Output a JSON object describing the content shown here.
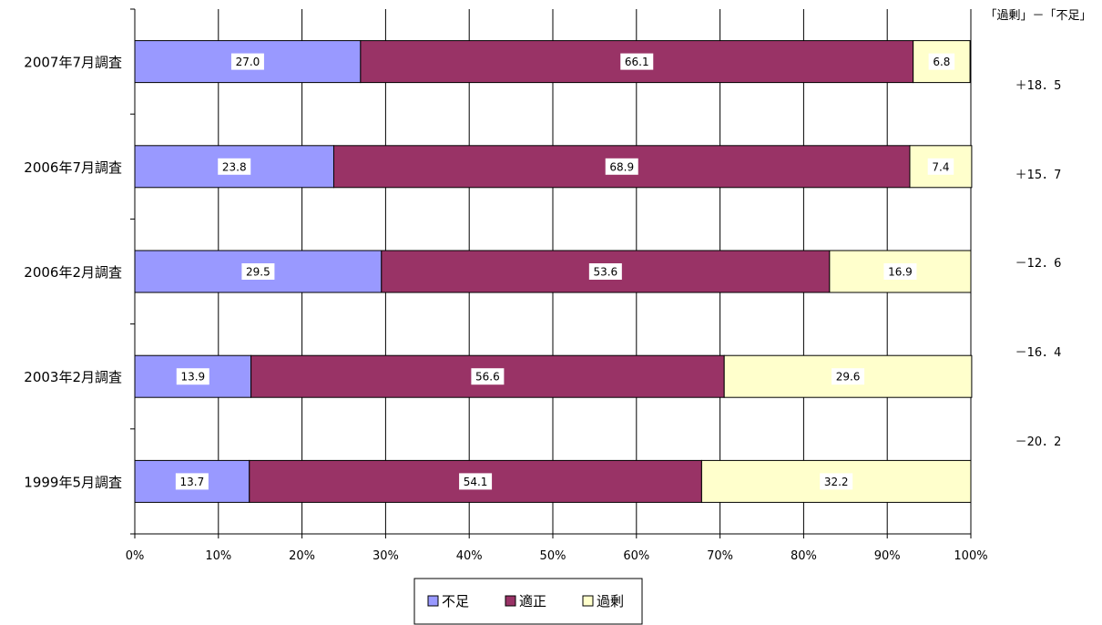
{
  "chart_data": {
    "type": "bar",
    "orientation": "horizontal",
    "stacked": "percent",
    "categories": [
      "2007年7月調査",
      "2006年7月調査",
      "2006年2月調査",
      "2003年2月調査",
      "1999年5月調査"
    ],
    "series": [
      {
        "name": "不足",
        "values": [
          27.0,
          23.8,
          29.5,
          13.9,
          13.7
        ],
        "color": "#9999ff"
      },
      {
        "name": "適正",
        "values": [
          66.1,
          68.9,
          53.6,
          56.6,
          54.1
        ],
        "color": "#993366"
      },
      {
        "name": "過剰",
        "values": [
          6.8,
          7.4,
          16.9,
          29.6,
          32.2
        ],
        "color": "#ffffcc"
      }
    ],
    "data_labels": [
      [
        "27.0",
        "66.1",
        "6.8"
      ],
      [
        "23.8",
        "68.9",
        "7.4"
      ],
      [
        "29.5",
        "53.6",
        "16.9"
      ],
      [
        "13.9",
        "56.6",
        "29.6"
      ],
      [
        "13.7",
        "54.1",
        "32.2"
      ]
    ],
    "xticks": [
      "0%",
      "10%",
      "20%",
      "30%",
      "40%",
      "50%",
      "60%",
      "70%",
      "80%",
      "90%",
      "100%"
    ],
    "xlim": [
      0,
      100
    ],
    "grid": "vertical",
    "legend_position": "bottom",
    "annotation_title": "「過剰」－「不足」",
    "annotations": [
      "＋18．5",
      "＋15．7",
      "－12．6",
      "－16．4",
      "－20．2"
    ]
  }
}
